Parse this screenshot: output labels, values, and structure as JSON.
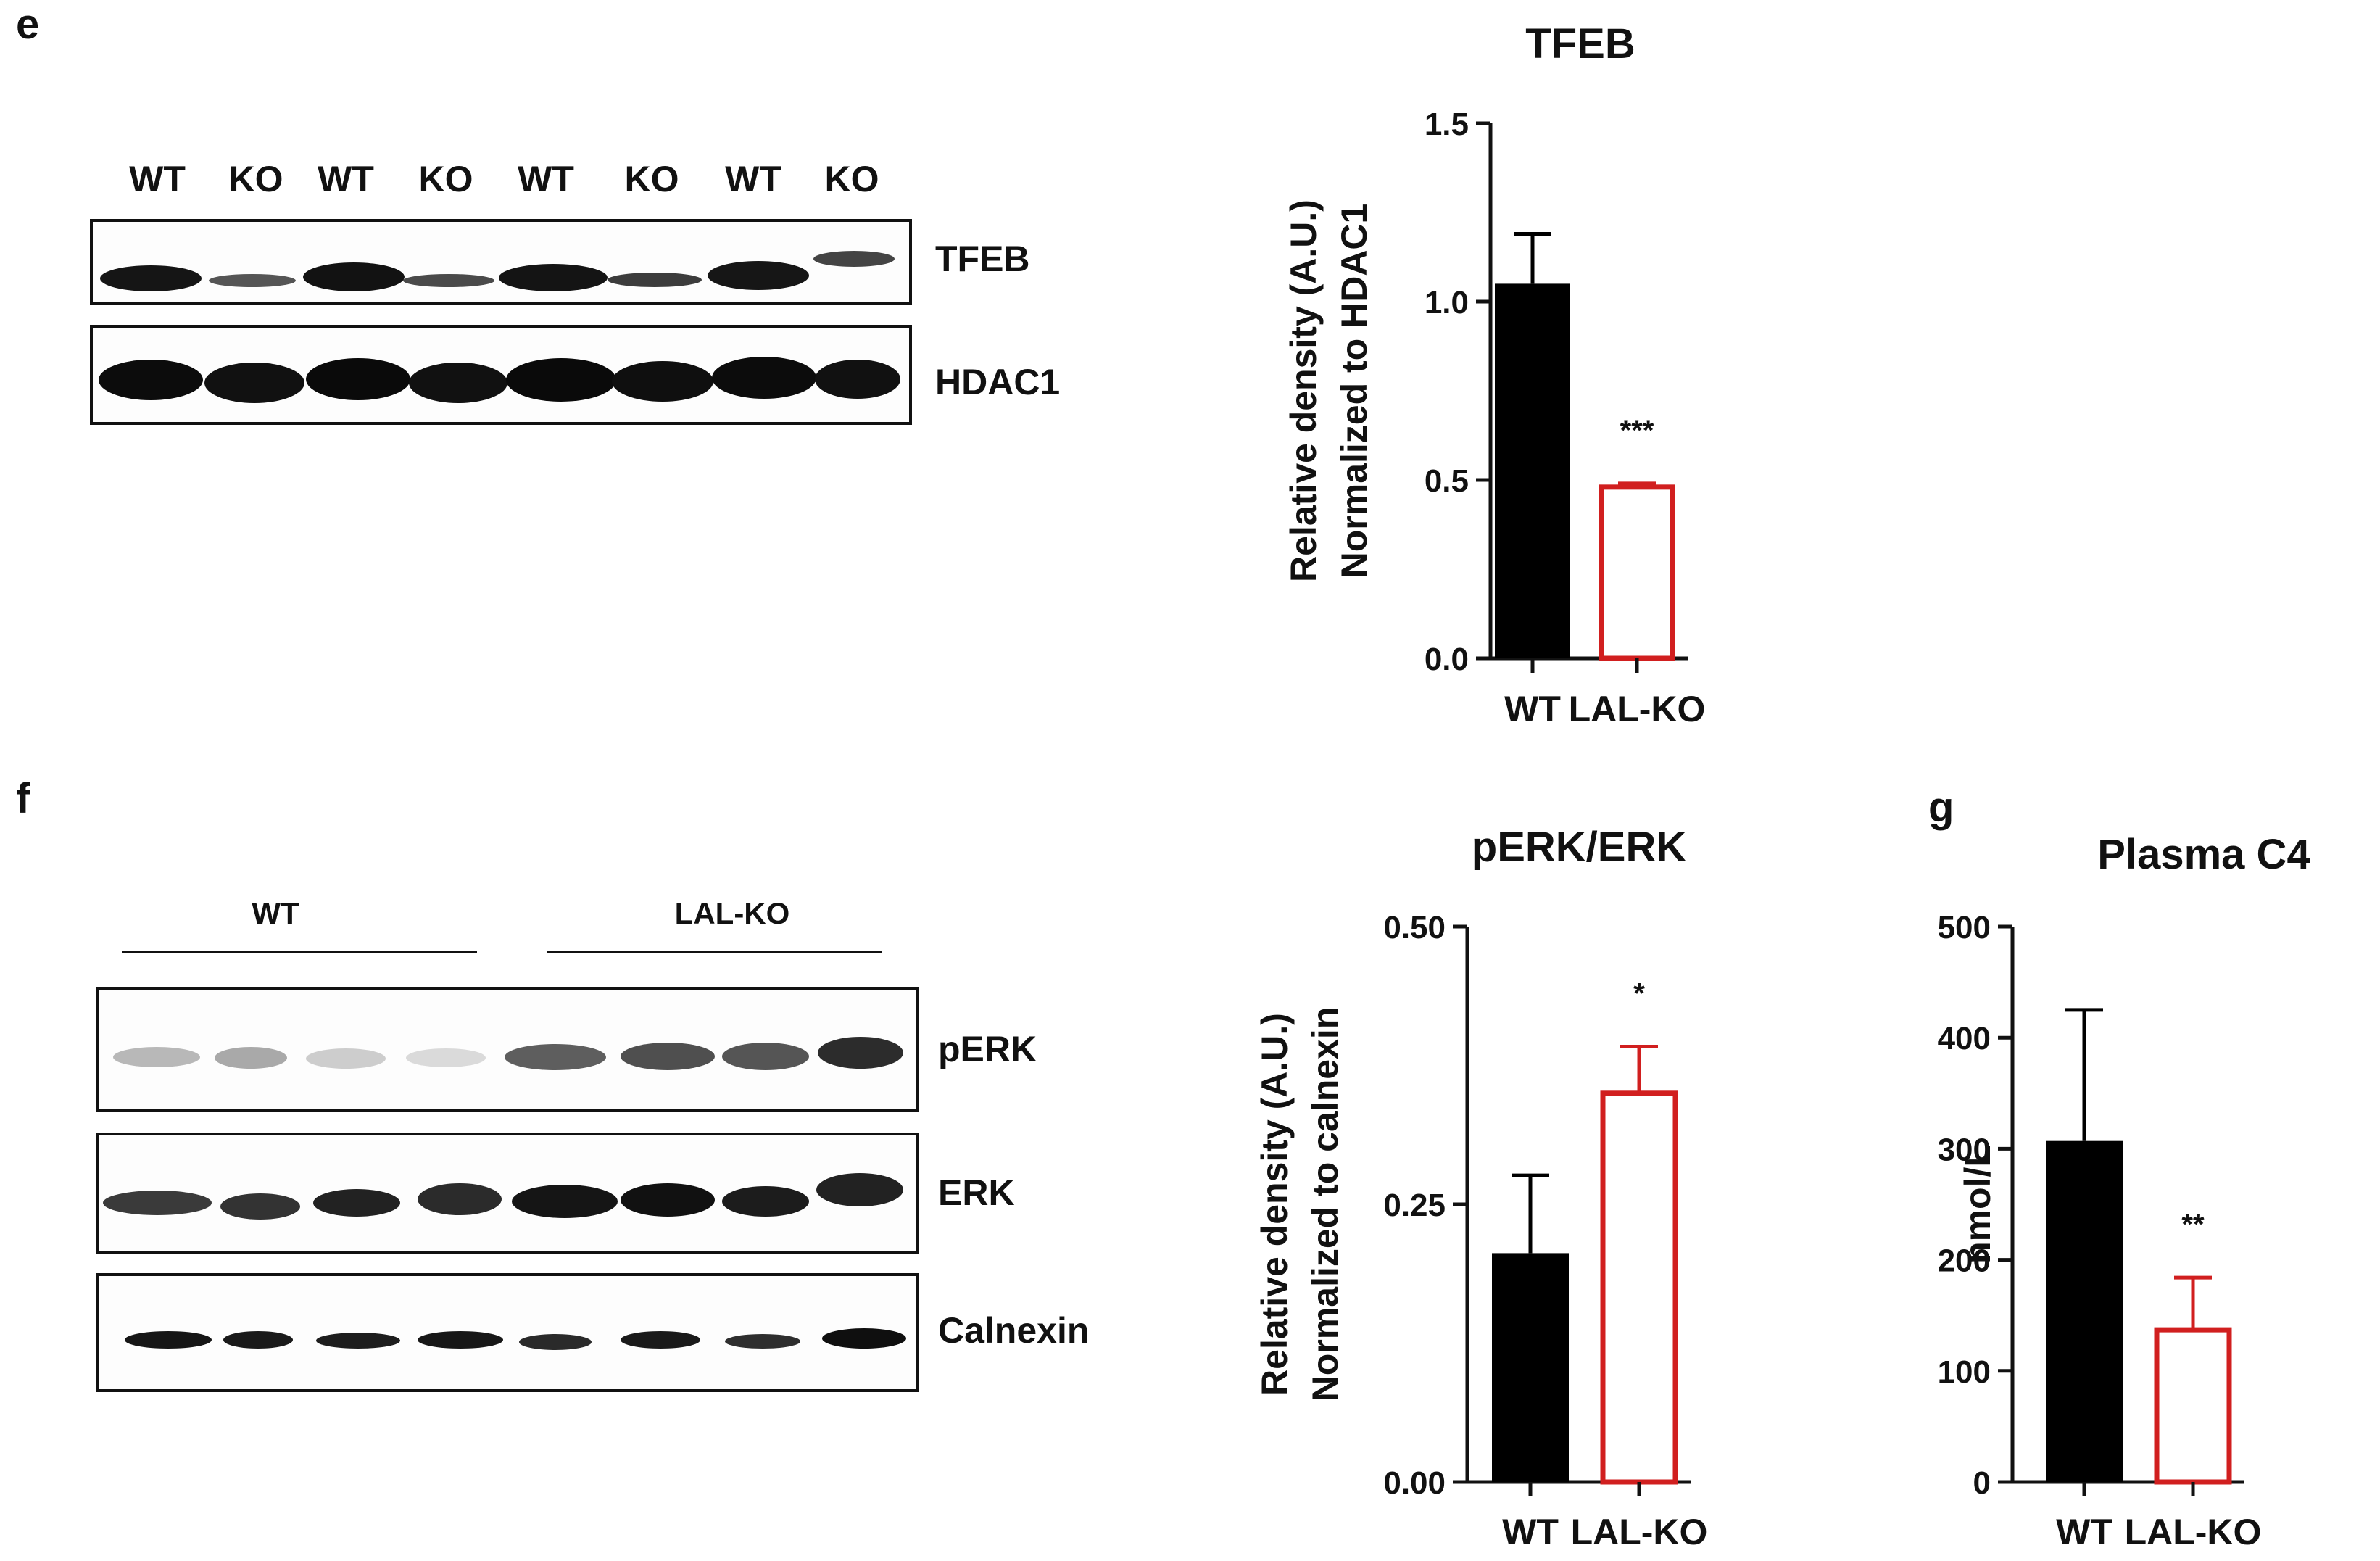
{
  "panels": {
    "e": {
      "letter": "e",
      "lanes": [
        "WT",
        "KO",
        "WT",
        "KO",
        "WT",
        "KO",
        "WT",
        "KO"
      ],
      "blots": [
        "TFEB",
        "HDAC1"
      ]
    },
    "f": {
      "letter": "f",
      "groups": [
        "WT",
        "LAL-KO"
      ],
      "blots": [
        "pERK",
        "ERK",
        "Calnexin"
      ]
    },
    "g": {
      "letter": "g"
    }
  },
  "colors": {
    "wt_fill": "#000000",
    "ko_stroke": "#d11f1f",
    "axis": "#111111"
  },
  "chart_data": [
    {
      "type": "bar",
      "title": "TFEB",
      "ylabel_lines": [
        "Relative density (A.U.)",
        "Normalized to HDAC1"
      ],
      "categories": [
        "WT",
        "LAL-KO"
      ],
      "values": [
        1.05,
        0.48
      ],
      "errors": [
        0.14,
        0.01
      ],
      "fills": [
        "solid",
        "hollow"
      ],
      "ylim": [
        0,
        1.5
      ],
      "yticks": [
        "0.0",
        "0.5",
        "1.0",
        "1.5"
      ],
      "significance": [
        "",
        "***"
      ]
    },
    {
      "type": "bar",
      "title": "pERK/ERK",
      "ylabel_lines": [
        "Relative density (A.U.)",
        "Normalized to calnexin"
      ],
      "categories": [
        "WT",
        "LAL-KO"
      ],
      "values": [
        0.206,
        0.35
      ],
      "errors": [
        0.07,
        0.042
      ],
      "fills": [
        "solid",
        "hollow"
      ],
      "ylim": [
        0,
        0.5
      ],
      "yticks": [
        "0.00",
        "0.25",
        "0.50"
      ],
      "significance": [
        "",
        "*"
      ]
    },
    {
      "type": "bar",
      "title": "Plasma C4",
      "ylabel_lines": [
        "nmol/L"
      ],
      "categories": [
        "WT",
        "LAL-KO"
      ],
      "values": [
        307,
        137
      ],
      "errors": [
        118,
        47
      ],
      "fills": [
        "solid",
        "hollow"
      ],
      "ylim": [
        0,
        500
      ],
      "yticks": [
        "0",
        "100",
        "200",
        "300",
        "400",
        "500"
      ],
      "significance": [
        "",
        "**"
      ]
    }
  ]
}
